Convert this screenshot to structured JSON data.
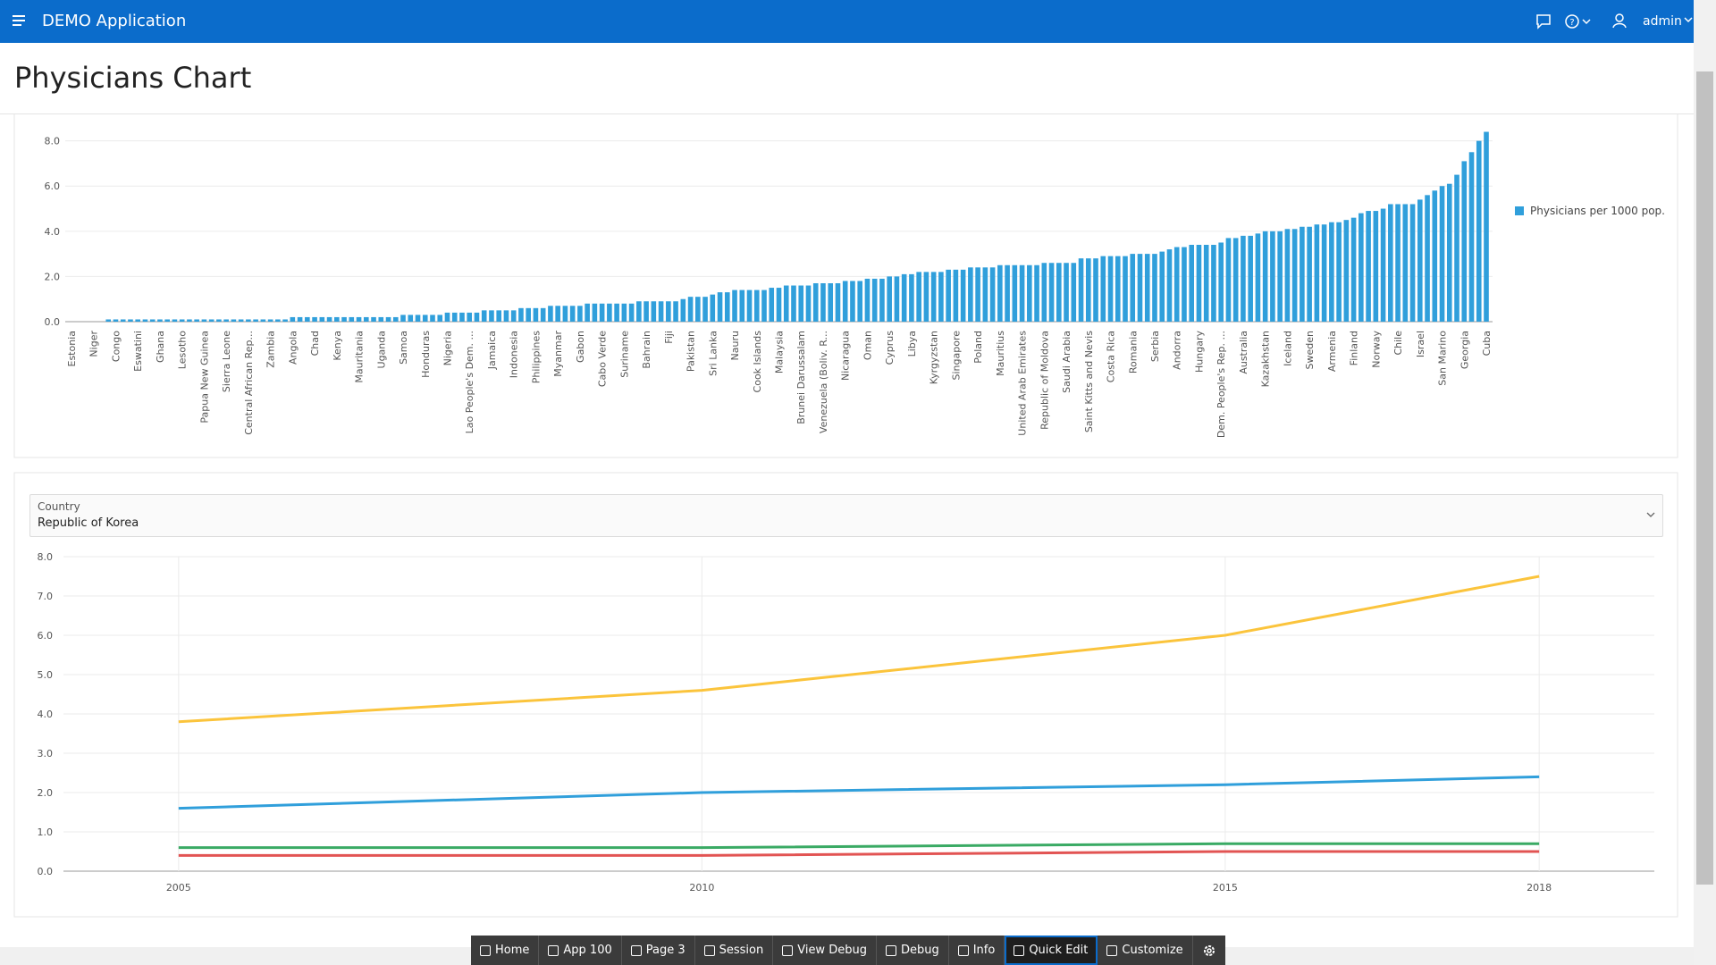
{
  "header": {
    "app_title": "DEMO Application",
    "user": "admin"
  },
  "page_title": "Physicians Chart",
  "chart_data": [
    {
      "type": "bar",
      "categories": [
        "Estonia",
        null,
        null,
        "Niger",
        null,
        null,
        "Congo",
        null,
        null,
        "Eswatini",
        null,
        null,
        "Ghana",
        null,
        null,
        "Lesotho",
        null,
        null,
        "Papua New Guinea",
        null,
        null,
        "Sierra Leone",
        null,
        null,
        "Central African Rep...",
        null,
        null,
        "Zambia",
        null,
        null,
        "Angola",
        null,
        null,
        "Chad",
        null,
        null,
        "Kenya",
        null,
        null,
        "Mauritania",
        null,
        null,
        "Uganda",
        null,
        null,
        "Samoa",
        null,
        null,
        "Honduras",
        null,
        null,
        "Nigeria",
        null,
        null,
        "Lao People's Dem. ...",
        null,
        null,
        "Jamaica",
        null,
        null,
        "Indonesia",
        null,
        null,
        "Philippines",
        null,
        null,
        "Myanmar",
        null,
        null,
        "Gabon",
        null,
        null,
        "Cabo Verde",
        null,
        null,
        "Suriname",
        null,
        null,
        "Bahrain",
        null,
        null,
        "Fiji",
        null,
        null,
        "Pakistan",
        null,
        null,
        "Sri Lanka",
        null,
        null,
        "Nauru",
        null,
        null,
        "Cook Islands",
        null,
        null,
        "Malaysia",
        null,
        null,
        "Brunei Darussalam",
        null,
        null,
        "Venezuela (Boliv. R...",
        null,
        null,
        "Nicaragua",
        null,
        null,
        "Oman",
        null,
        null,
        "Cyprus",
        null,
        null,
        "Libya",
        null,
        null,
        "Kyrgyzstan",
        null,
        null,
        "Singapore",
        null,
        null,
        "Poland",
        null,
        null,
        "Mauritius",
        null,
        null,
        "United Arab Emirates",
        null,
        null,
        "Republic of Moldova",
        null,
        null,
        "Saudi Arabia",
        null,
        null,
        "Saint Kitts and Nevis",
        null,
        null,
        "Costa Rica",
        null,
        null,
        "Romania",
        null,
        null,
        "Serbia",
        null,
        null,
        "Andorra",
        null,
        null,
        "Hungary",
        null,
        null,
        "Dem. People's Rep. ...",
        null,
        null,
        "Australia",
        null,
        null,
        "Kazakhstan",
        null,
        null,
        "Iceland",
        null,
        null,
        "Sweden",
        null,
        null,
        "Armenia",
        null,
        null,
        "Finland",
        null,
        null,
        "Norway",
        null,
        null,
        "Chile",
        null,
        null,
        "Israel",
        null,
        null,
        "San Marino",
        null,
        null,
        "Georgia",
        null,
        null,
        "Cuba"
      ],
      "series": [
        {
          "name": "Physicians per 1000 pop.",
          "color": "#309fdb",
          "values": [
            0,
            0,
            0,
            0,
            0,
            0.1,
            0.1,
            0.1,
            0.1,
            0.1,
            0.1,
            0.1,
            0.1,
            0.1,
            0.1,
            0.1,
            0.1,
            0.1,
            0.1,
            0.1,
            0.1,
            0.1,
            0.1,
            0.1,
            0.1,
            0.1,
            0.1,
            0.1,
            0.1,
            0.1,
            0.2,
            0.2,
            0.2,
            0.2,
            0.2,
            0.2,
            0.2,
            0.2,
            0.2,
            0.2,
            0.2,
            0.2,
            0.2,
            0.2,
            0.2,
            0.3,
            0.3,
            0.3,
            0.3,
            0.3,
            0.3,
            0.4,
            0.4,
            0.4,
            0.4,
            0.4,
            0.5,
            0.5,
            0.5,
            0.5,
            0.5,
            0.6,
            0.6,
            0.6,
            0.6,
            0.7,
            0.7,
            0.7,
            0.7,
            0.7,
            0.8,
            0.8,
            0.8,
            0.8,
            0.8,
            0.8,
            0.8,
            0.9,
            0.9,
            0.9,
            0.9,
            0.9,
            0.9,
            1.0,
            1.1,
            1.1,
            1.1,
            1.2,
            1.3,
            1.3,
            1.4,
            1.4,
            1.4,
            1.4,
            1.4,
            1.5,
            1.5,
            1.6,
            1.6,
            1.6,
            1.6,
            1.7,
            1.7,
            1.7,
            1.7,
            1.8,
            1.8,
            1.8,
            1.9,
            1.9,
            1.9,
            2.0,
            2.0,
            2.1,
            2.1,
            2.2,
            2.2,
            2.2,
            2.2,
            2.3,
            2.3,
            2.3,
            2.4,
            2.4,
            2.4,
            2.4,
            2.5,
            2.5,
            2.5,
            2.5,
            2.5,
            2.5,
            2.6,
            2.6,
            2.6,
            2.6,
            2.6,
            2.8,
            2.8,
            2.8,
            2.9,
            2.9,
            2.9,
            2.9,
            3.0,
            3.0,
            3.0,
            3.0,
            3.1,
            3.2,
            3.3,
            3.3,
            3.4,
            3.4,
            3.4,
            3.4,
            3.5,
            3.7,
            3.7,
            3.8,
            3.8,
            3.9,
            4.0,
            4.0,
            4.0,
            4.1,
            4.1,
            4.2,
            4.2,
            4.3,
            4.3,
            4.4,
            4.4,
            4.5,
            4.6,
            4.8,
            4.9,
            4.9,
            5.0,
            5.2,
            5.2,
            5.2,
            5.2,
            5.4,
            5.6,
            5.8,
            6.0,
            6.1,
            6.5,
            7.1,
            7.5,
            8.0,
            8.4
          ]
        }
      ],
      "ylim": [
        0,
        8.5
      ],
      "yticks": [
        {
          "value": 0,
          "label": "0.0"
        },
        {
          "value": 2,
          "label": "2.0"
        },
        {
          "value": 4,
          "label": "4.0"
        },
        {
          "value": 6,
          "label": "6.0"
        },
        {
          "value": 8,
          "label": "8.0"
        }
      ],
      "grid": true,
      "legend": "right"
    },
    {
      "type": "line",
      "x": [
        2005,
        2010,
        2015,
        2018
      ],
      "series": [
        {
          "color": "#fbc43c",
          "values": [
            3.8,
            4.6,
            6.0,
            7.5
          ]
        },
        {
          "color": "#309fdb",
          "values": [
            1.6,
            2.0,
            2.2,
            2.4
          ]
        },
        {
          "color": "#3aaa64",
          "values": [
            0.6,
            0.6,
            0.7,
            0.7
          ]
        },
        {
          "color": "#e25453",
          "values": [
            0.4,
            0.4,
            0.5,
            0.5
          ]
        }
      ],
      "xlim": [
        2003.9,
        2019.1
      ],
      "xticks": [
        2005,
        2010,
        2015,
        2018
      ],
      "ylim": [
        0,
        8
      ],
      "yticks": [
        {
          "value": 0,
          "label": "0.0"
        },
        {
          "value": 1,
          "label": "1.0"
        },
        {
          "value": 2,
          "label": "2.0"
        },
        {
          "value": 3,
          "label": "3.0"
        },
        {
          "value": 4,
          "label": "4.0"
        },
        {
          "value": 5,
          "label": "5.0"
        },
        {
          "value": 6,
          "label": "6.0"
        },
        {
          "value": 7,
          "label": "7.0"
        },
        {
          "value": 8,
          "label": "8.0"
        }
      ],
      "grid": true
    }
  ],
  "filter": {
    "label": "Country",
    "value": "Republic of Korea"
  },
  "toolbar": [
    "Home",
    "App 100",
    "Page 3",
    "Session",
    "View Debug",
    "Debug",
    "Info",
    "Quick Edit",
    "Customize"
  ]
}
